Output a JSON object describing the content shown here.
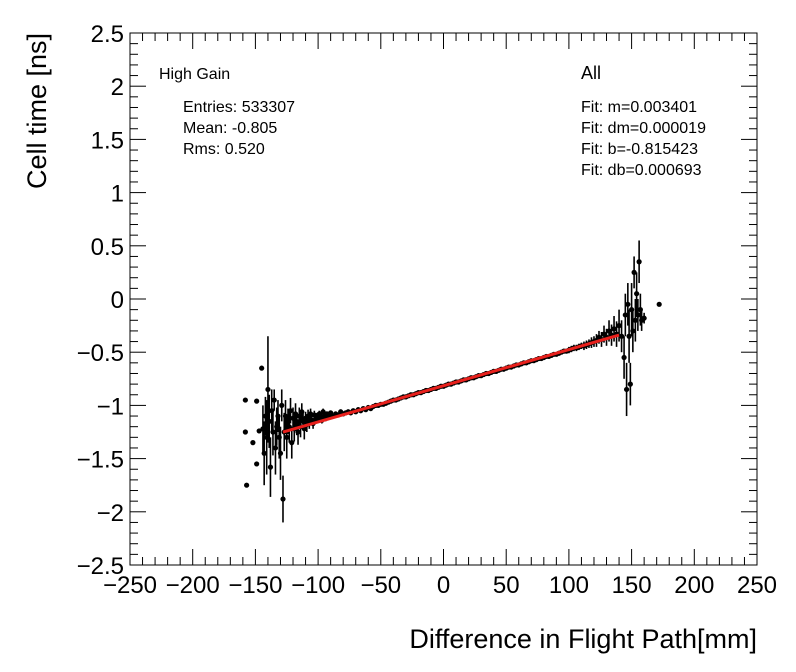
{
  "chart_data": {
    "type": "scatter",
    "xlabel": "Difference in Flight Path[mm]",
    "ylabel": "Cell time [ns]",
    "xlim": [
      -250,
      250
    ],
    "ylim": [
      -2.5,
      2.5
    ],
    "xticks": [
      -250,
      -200,
      -150,
      -100,
      -50,
      0,
      50,
      100,
      150,
      200,
      250
    ],
    "yticks": [
      -2.5,
      -2,
      -1.5,
      -1,
      -0.5,
      0,
      0.5,
      1,
      1.5,
      2,
      2.5
    ],
    "xtick_labels": [
      "−250",
      "−200",
      "−150",
      "−100",
      "−50",
      "0",
      "50",
      "100",
      "150",
      "200",
      "250"
    ],
    "ytick_labels": [
      "−2.5",
      "−2",
      "−1.5",
      "−1",
      "−0.5",
      "0",
      "0.5",
      "1",
      "1.5",
      "2",
      "2.5"
    ],
    "grid": false,
    "stats_box": {
      "gain_label": "High Gain",
      "entries": "Entries: 533307",
      "mean": "Mean: -0.805",
      "rms": "Rms: 0.520"
    },
    "fit_box": {
      "label": "All",
      "m": "Fit: m=0.003401",
      "dm": "Fit: dm=0.000019",
      "b": "Fit: b=-0.815423",
      "db": "Fit: db=0.000693"
    },
    "fit_line": {
      "slope": 0.003401,
      "intercept": -0.815423,
      "x_range": [
        -128,
        140
      ],
      "color": "#e8201c"
    },
    "series": [
      {
        "points": [
          [
            -158,
            -0.95,
            0
          ],
          [
            -158,
            -1.25,
            0
          ],
          [
            -157,
            -1.75,
            0
          ],
          [
            -152,
            -1.35,
            0
          ],
          [
            -149,
            -0.96,
            0
          ],
          [
            -149,
            -1.55,
            0
          ],
          [
            -147,
            -1.24,
            0
          ],
          [
            -145,
            -0.65,
            0
          ],
          [
            -144,
            -1.22,
            0.22
          ],
          [
            -143,
            -1.45,
            0.3
          ],
          [
            -142,
            -1.1,
            0.18
          ],
          [
            -141,
            -1.3,
            0.35
          ],
          [
            -140,
            -0.85,
            0.5
          ],
          [
            -139,
            -1.15,
            0.25
          ],
          [
            -138,
            -1.58,
            0.28
          ],
          [
            -137,
            -1.05,
            0.2
          ],
          [
            -136,
            -1.25,
            0.22
          ],
          [
            -135,
            -0.95,
            0.1
          ],
          [
            -134,
            -1.4,
            0.25
          ],
          [
            -133,
            -1.2,
            0.18
          ],
          [
            -132,
            -1.1,
            0.15
          ],
          [
            -131,
            -1.3,
            0.2
          ],
          [
            -130,
            -1.45,
            0.25
          ],
          [
            -129,
            -1.0,
            0.15
          ],
          [
            -128,
            -1.88,
            0.22
          ],
          [
            -127,
            -1.25,
            0.18
          ],
          [
            -126,
            -1.1,
            0.15
          ],
          [
            -125,
            -1.3,
            0.2
          ],
          [
            -124,
            -1.15,
            0.12
          ],
          [
            -123,
            -1.2,
            0.15
          ],
          [
            -122,
            -1.05,
            0.12
          ],
          [
            -121,
            -1.35,
            0.15
          ],
          [
            -120,
            -1.12,
            0.1
          ],
          [
            -119,
            -1.22,
            0.12
          ],
          [
            -118,
            -1.08,
            0.1
          ],
          [
            -117,
            -1.18,
            0.1
          ],
          [
            -116,
            -1.25,
            0.12
          ],
          [
            -115,
            -1.1,
            0.08
          ],
          [
            -114,
            -1.2,
            0.1
          ],
          [
            -113,
            -1.06,
            0.08
          ],
          [
            -112,
            -1.15,
            0.08
          ],
          [
            -111,
            -1.22,
            0.1
          ],
          [
            -110,
            -1.12,
            0.06
          ],
          [
            -109,
            -1.18,
            0.07
          ],
          [
            -108,
            -1.1,
            0.06
          ],
          [
            -107,
            -1.16,
            0.06
          ],
          [
            -106,
            -1.08,
            0.05
          ],
          [
            -105,
            -1.14,
            0.05
          ],
          [
            -104,
            -1.17,
            0.05
          ],
          [
            -103,
            -1.09,
            0.04
          ],
          [
            -102,
            -1.13,
            0.04
          ],
          [
            -101,
            -1.11,
            0.04
          ],
          [
            -100,
            -1.12,
            0.04
          ],
          [
            -99,
            -1.08,
            0.03
          ],
          [
            -98,
            -1.1,
            0.03
          ],
          [
            -97,
            -1.14,
            0.03
          ],
          [
            -96,
            -1.06,
            0.03
          ],
          [
            -95,
            -1.1,
            0.03
          ],
          [
            -94,
            -1.12,
            0.03
          ],
          [
            -93,
            -1.08,
            0.02
          ],
          [
            -92,
            -1.09,
            0.02
          ],
          [
            -91,
            -1.11,
            0.02
          ],
          [
            -90,
            -1.07,
            0.02
          ],
          [
            -88,
            -1.1,
            0.02
          ],
          [
            -86,
            -1.08,
            0.02
          ],
          [
            -84,
            -1.09,
            0.02
          ],
          [
            -82,
            -1.06,
            0.02
          ],
          [
            -80,
            -1.08,
            0.02
          ],
          [
            -78,
            -1.07,
            0.02
          ],
          [
            -76,
            -1.06,
            0.02
          ],
          [
            -74,
            -1.07,
            0.02
          ],
          [
            -72,
            -1.05,
            0.02
          ],
          [
            -70,
            -1.06,
            0.02
          ],
          [
            -68,
            -1.04,
            0.02
          ],
          [
            -66,
            -1.05,
            0.02
          ],
          [
            -64,
            -1.03,
            0.02
          ],
          [
            -62,
            -1.04,
            0.02
          ],
          [
            -60,
            -1.02,
            0.02
          ],
          [
            -58,
            -1.03,
            0.02
          ],
          [
            -56,
            -1.01,
            0.02
          ],
          [
            -54,
            -1.0,
            0.02
          ],
          [
            -52,
            -1.0,
            0.02
          ],
          [
            -50,
            -0.99,
            0.02
          ],
          [
            -48,
            -0.99,
            0.02
          ],
          [
            -46,
            -0.98,
            0.02
          ],
          [
            -44,
            -0.97,
            0.02
          ],
          [
            -42,
            -0.96,
            0.02
          ],
          [
            -40,
            -0.95,
            0.02
          ],
          [
            -38,
            -0.95,
            0.02
          ],
          [
            -36,
            -0.94,
            0.02
          ],
          [
            -34,
            -0.93,
            0.02
          ],
          [
            -32,
            -0.92,
            0.02
          ],
          [
            -30,
            -0.92,
            0.02
          ],
          [
            -28,
            -0.91,
            0.02
          ],
          [
            -26,
            -0.9,
            0.02
          ],
          [
            -24,
            -0.9,
            0.02
          ],
          [
            -22,
            -0.89,
            0.02
          ],
          [
            -20,
            -0.88,
            0.02
          ],
          [
            -18,
            -0.88,
            0.02
          ],
          [
            -16,
            -0.87,
            0.02
          ],
          [
            -14,
            -0.86,
            0.02
          ],
          [
            -12,
            -0.86,
            0.02
          ],
          [
            -10,
            -0.85,
            0.02
          ],
          [
            -8,
            -0.84,
            0.02
          ],
          [
            -6,
            -0.84,
            0.02
          ],
          [
            -4,
            -0.83,
            0.02
          ],
          [
            -2,
            -0.82,
            0.02
          ],
          [
            0,
            -0.82,
            0.02
          ],
          [
            2,
            -0.81,
            0.02
          ],
          [
            4,
            -0.8,
            0.02
          ],
          [
            6,
            -0.8,
            0.02
          ],
          [
            8,
            -0.79,
            0.02
          ],
          [
            10,
            -0.78,
            0.02
          ],
          [
            12,
            -0.78,
            0.02
          ],
          [
            14,
            -0.77,
            0.02
          ],
          [
            16,
            -0.76,
            0.02
          ],
          [
            18,
            -0.76,
            0.02
          ],
          [
            20,
            -0.75,
            0.02
          ],
          [
            22,
            -0.74,
            0.02
          ],
          [
            24,
            -0.74,
            0.02
          ],
          [
            26,
            -0.73,
            0.02
          ],
          [
            28,
            -0.72,
            0.02
          ],
          [
            30,
            -0.72,
            0.02
          ],
          [
            32,
            -0.71,
            0.02
          ],
          [
            34,
            -0.7,
            0.02
          ],
          [
            36,
            -0.7,
            0.02
          ],
          [
            38,
            -0.69,
            0.02
          ],
          [
            40,
            -0.68,
            0.02
          ],
          [
            42,
            -0.68,
            0.02
          ],
          [
            44,
            -0.67,
            0.02
          ],
          [
            46,
            -0.66,
            0.02
          ],
          [
            48,
            -0.66,
            0.02
          ],
          [
            50,
            -0.65,
            0.02
          ],
          [
            52,
            -0.64,
            0.02
          ],
          [
            54,
            -0.64,
            0.02
          ],
          [
            56,
            -0.63,
            0.02
          ],
          [
            58,
            -0.62,
            0.02
          ],
          [
            60,
            -0.62,
            0.02
          ],
          [
            62,
            -0.61,
            0.02
          ],
          [
            64,
            -0.6,
            0.02
          ],
          [
            66,
            -0.6,
            0.02
          ],
          [
            68,
            -0.59,
            0.02
          ],
          [
            70,
            -0.58,
            0.02
          ],
          [
            72,
            -0.58,
            0.02
          ],
          [
            74,
            -0.57,
            0.02
          ],
          [
            76,
            -0.56,
            0.02
          ],
          [
            78,
            -0.56,
            0.02
          ],
          [
            80,
            -0.55,
            0.02
          ],
          [
            82,
            -0.54,
            0.02
          ],
          [
            84,
            -0.54,
            0.02
          ],
          [
            86,
            -0.53,
            0.02
          ],
          [
            88,
            -0.52,
            0.02
          ],
          [
            90,
            -0.52,
            0.02
          ],
          [
            92,
            -0.51,
            0.02
          ],
          [
            94,
            -0.5,
            0.02
          ],
          [
            96,
            -0.49,
            0.02
          ],
          [
            98,
            -0.49,
            0.02
          ],
          [
            100,
            -0.48,
            0.03
          ],
          [
            102,
            -0.47,
            0.03
          ],
          [
            104,
            -0.46,
            0.03
          ],
          [
            106,
            -0.46,
            0.03
          ],
          [
            108,
            -0.45,
            0.03
          ],
          [
            110,
            -0.44,
            0.03
          ],
          [
            112,
            -0.44,
            0.04
          ],
          [
            114,
            -0.43,
            0.04
          ],
          [
            116,
            -0.42,
            0.04
          ],
          [
            118,
            -0.41,
            0.05
          ],
          [
            120,
            -0.4,
            0.05
          ],
          [
            122,
            -0.39,
            0.06
          ],
          [
            124,
            -0.36,
            0.06
          ],
          [
            126,
            -0.38,
            0.07
          ],
          [
            128,
            -0.33,
            0.08
          ],
          [
            130,
            -0.36,
            0.08
          ],
          [
            132,
            -0.3,
            0.1
          ],
          [
            134,
            -0.34,
            0.1
          ],
          [
            136,
            -0.28,
            0.12
          ],
          [
            138,
            -0.33,
            0.12
          ],
          [
            140,
            -0.25,
            0.15
          ],
          [
            142,
            -0.35,
            0.15
          ],
          [
            144,
            -0.55,
            0.2
          ],
          [
            145,
            -0.15,
            0.2
          ],
          [
            146,
            -0.85,
            0.25
          ],
          [
            147,
            -0.05,
            0.2
          ],
          [
            148,
            -0.35,
            0.25
          ],
          [
            149,
            -0.8,
            0.2
          ],
          [
            150,
            -0.1,
            0.25
          ],
          [
            151,
            -0.3,
            0.2
          ],
          [
            152,
            0.25,
            0.15
          ],
          [
            153,
            -0.2,
            0.2
          ],
          [
            154,
            0.05,
            0.2
          ],
          [
            155,
            -0.15,
            0.15
          ],
          [
            156,
            0.35,
            0.2
          ],
          [
            157,
            -0.1,
            0.15
          ],
          [
            158,
            -0.2,
            0.1
          ],
          [
            160,
            -0.18,
            0.05
          ],
          [
            172,
            -0.05,
            0
          ]
        ]
      }
    ]
  }
}
